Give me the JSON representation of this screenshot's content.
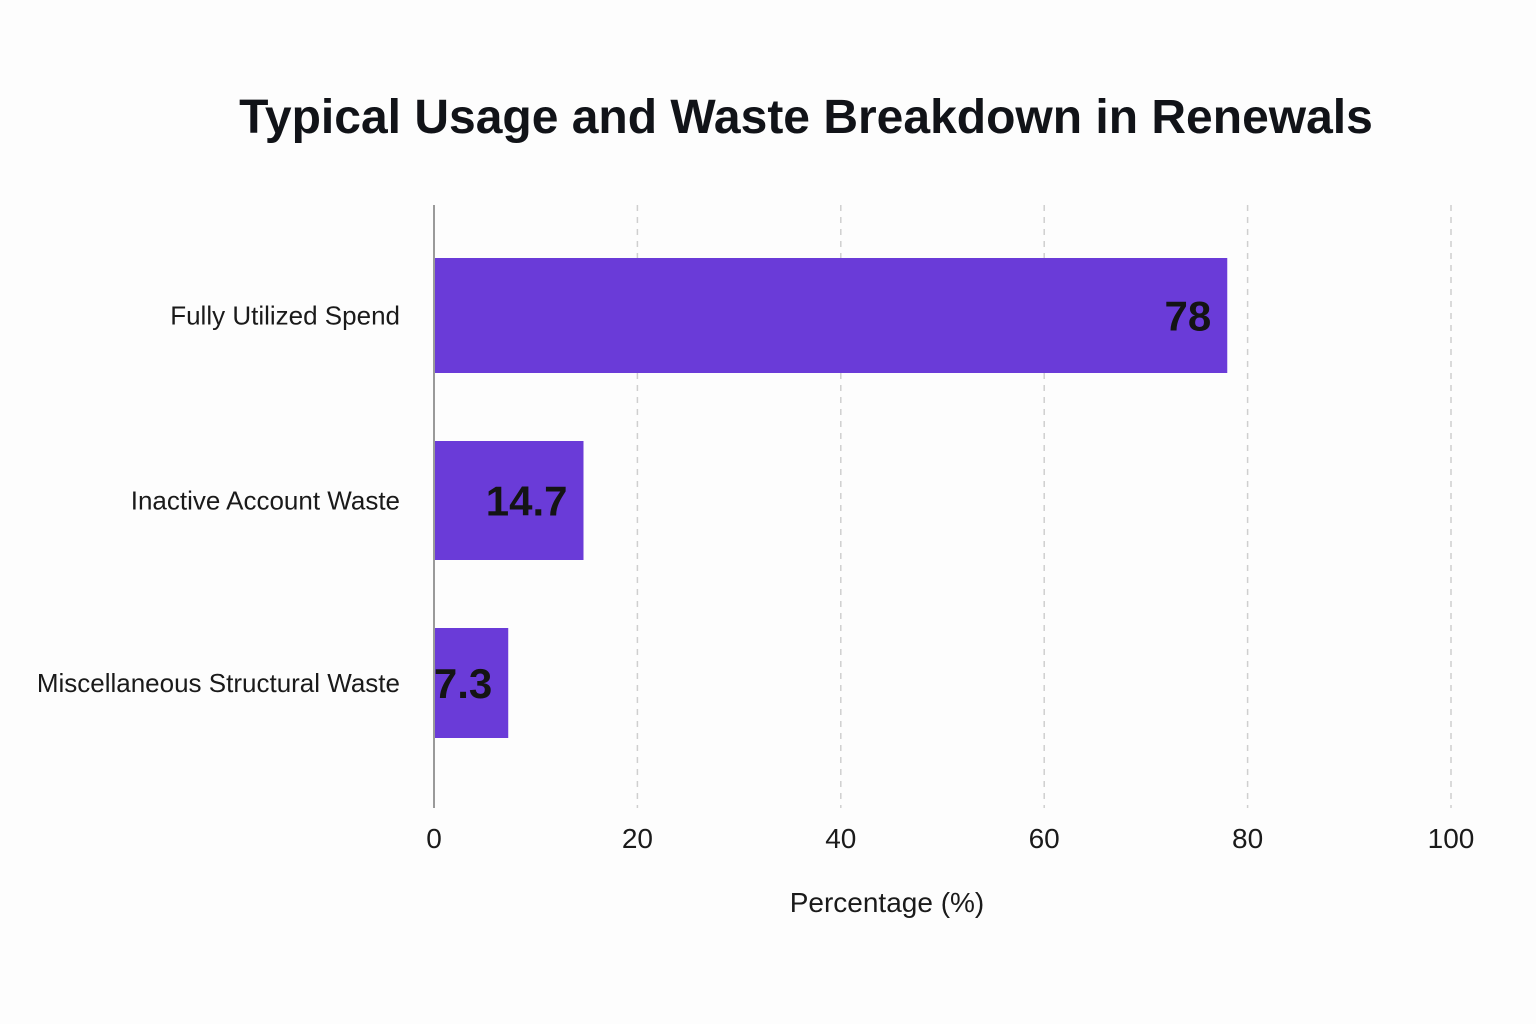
{
  "chart_data": {
    "type": "bar",
    "orientation": "horizontal",
    "title": "Typical Usage and Waste Breakdown in Renewals",
    "xlabel": "Percentage (%)",
    "ylabel": "",
    "xlim": [
      0,
      100
    ],
    "xticks": [
      0,
      20,
      40,
      60,
      80,
      100
    ],
    "grid": true,
    "categories": [
      "Fully Utilized Spend",
      "Inactive Account Waste",
      "Miscellaneous Structural Waste"
    ],
    "values": [
      78,
      14.7,
      7.3
    ],
    "value_labels": [
      "78",
      "14.7",
      "7.3"
    ],
    "bar_color": "#6a3bd8"
  }
}
